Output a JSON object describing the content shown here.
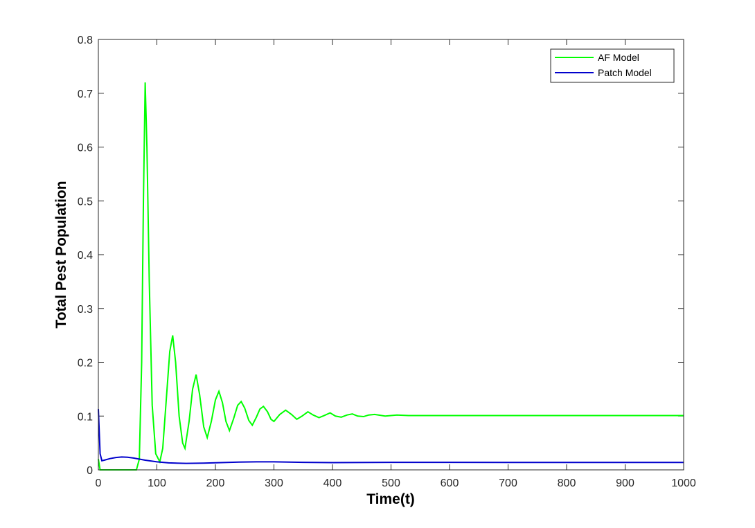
{
  "chart_data": {
    "type": "line",
    "xlabel": "Time(t)",
    "ylabel": "Total Pest Population",
    "xlim": [
      0,
      1000
    ],
    "ylim": [
      0,
      0.8
    ],
    "xticks": [
      0,
      100,
      200,
      300,
      400,
      500,
      600,
      700,
      800,
      900,
      1000
    ],
    "yticks": [
      0,
      0.1,
      0.2,
      0.3,
      0.4,
      0.5,
      0.6,
      0.7,
      0.8
    ],
    "grid": false,
    "legend": "upper right",
    "series": [
      {
        "name": "AF Model",
        "color": "#00ff00",
        "x": [
          0,
          3,
          65,
          70,
          74,
          77,
          80,
          83,
          87,
          92,
          98,
          105,
          110,
          116,
          122,
          127,
          132,
          138,
          144,
          148,
          155,
          161,
          167,
          173,
          180,
          186,
          193,
          200,
          206,
          212,
          218,
          224,
          231,
          238,
          244,
          250,
          257,
          263,
          270,
          276,
          282,
          289,
          295,
          300,
          310,
          320,
          330,
          339,
          348,
          358,
          367,
          377,
          386,
          396,
          405,
          415,
          425,
          434,
          443,
          453,
          462,
          472,
          490,
          510,
          530,
          600,
          700,
          800,
          900,
          1000
        ],
        "values": [
          0.02,
          0,
          0,
          0.02,
          0.2,
          0.5,
          0.72,
          0.6,
          0.35,
          0.12,
          0.03,
          0.015,
          0.04,
          0.13,
          0.22,
          0.25,
          0.2,
          0.1,
          0.05,
          0.04,
          0.09,
          0.15,
          0.177,
          0.14,
          0.08,
          0.06,
          0.09,
          0.13,
          0.146,
          0.125,
          0.09,
          0.073,
          0.095,
          0.12,
          0.127,
          0.115,
          0.092,
          0.083,
          0.098,
          0.113,
          0.118,
          0.108,
          0.094,
          0.09,
          0.103,
          0.111,
          0.103,
          0.094,
          0.1,
          0.108,
          0.102,
          0.097,
          0.101,
          0.106,
          0.1,
          0.098,
          0.102,
          0.104,
          0.1,
          0.099,
          0.102,
          0.103,
          0.1,
          0.102,
          0.101,
          0.101,
          0.101,
          0.101,
          0.101,
          0.101
        ]
      },
      {
        "name": "Patch Model",
        "color": "#0000cc",
        "x": [
          0,
          3,
          6,
          10,
          20,
          30,
          40,
          50,
          60,
          80,
          100,
          120,
          150,
          180,
          210,
          240,
          270,
          300,
          350,
          400,
          500,
          600,
          700,
          800,
          900,
          1000
        ],
        "values": [
          0.113,
          0.03,
          0.017,
          0.018,
          0.021,
          0.023,
          0.024,
          0.0235,
          0.022,
          0.018,
          0.015,
          0.013,
          0.012,
          0.0125,
          0.0135,
          0.0145,
          0.015,
          0.015,
          0.014,
          0.0135,
          0.014,
          0.014,
          0.0138,
          0.0138,
          0.0138,
          0.0138
        ]
      }
    ]
  }
}
